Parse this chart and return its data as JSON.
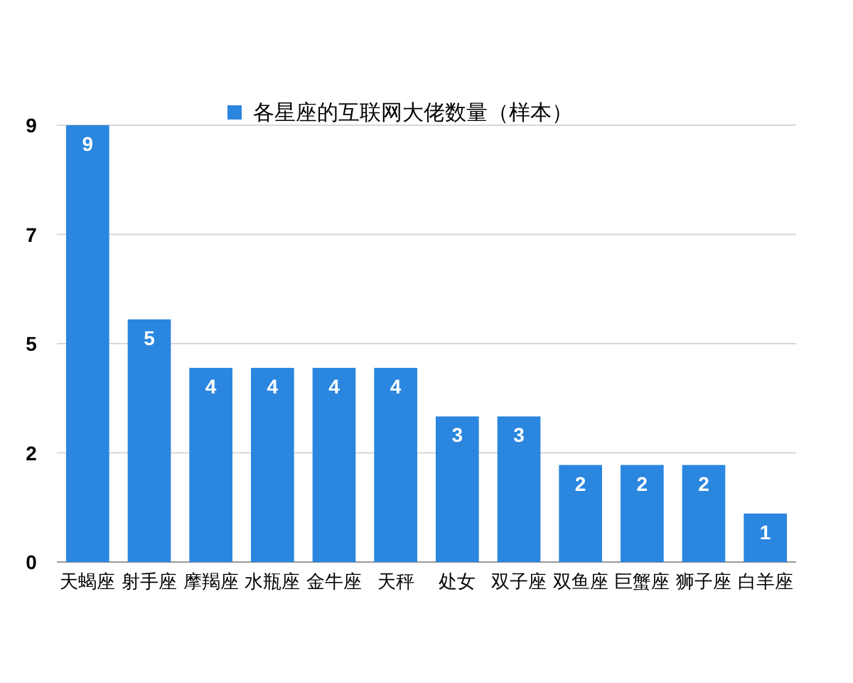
{
  "chart_data": {
    "type": "bar",
    "categories": [
      "天蝎座",
      "射手座",
      "摩羯座",
      "水瓶座",
      "金牛座",
      "天秤",
      "处女",
      "双子座",
      "双鱼座",
      "巨蟹座",
      "狮子座",
      "白羊座"
    ],
    "series": [
      {
        "name": "各星座的互联网大佬数量（样本）",
        "color": "#2a86df",
        "values": [
          9,
          5,
          4,
          4,
          4,
          4,
          3,
          3,
          2,
          2,
          2,
          1
        ]
      }
    ],
    "ylim": [
      0,
      9
    ],
    "yticks": [
      0,
      {
        "value": 2.25,
        "label": "2"
      },
      {
        "value": 4.5,
        "label": "5"
      },
      {
        "value": 6.75,
        "label": "7"
      },
      9
    ],
    "grid": "y",
    "legend": "top",
    "data_labels": true
  }
}
